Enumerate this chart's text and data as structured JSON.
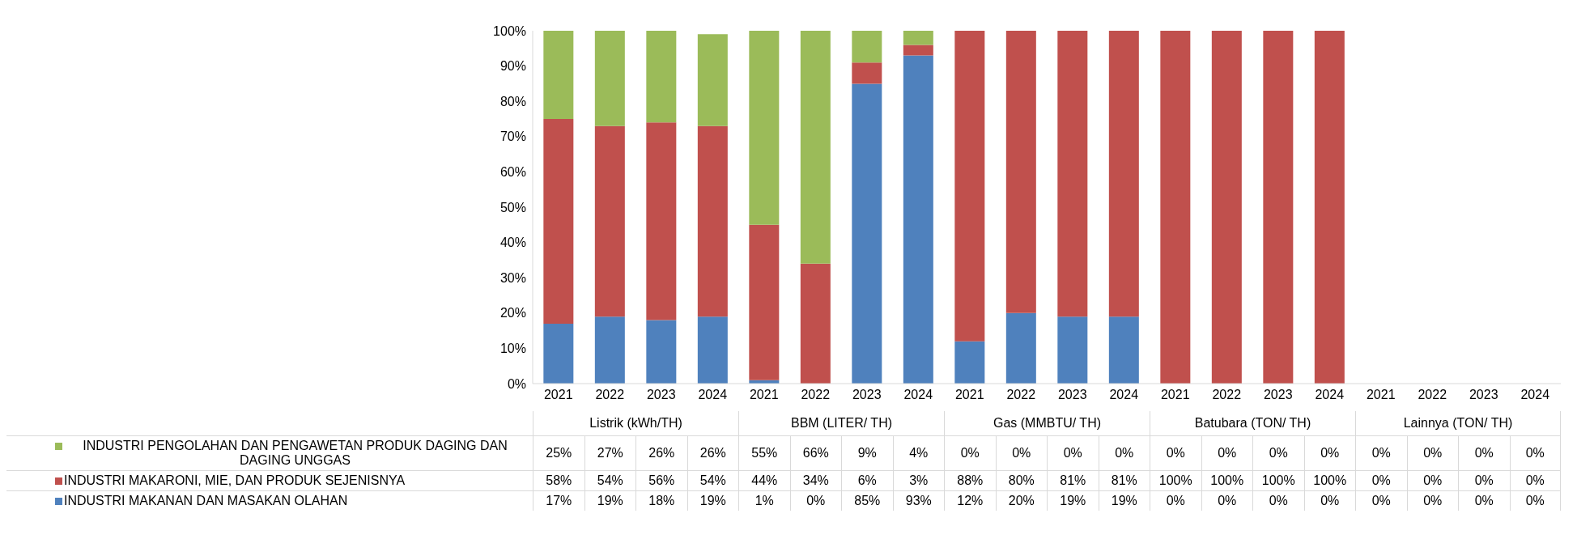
{
  "chart_data": {
    "type": "bar",
    "stacked": true,
    "categories": [
      "2021",
      "2022",
      "2023",
      "2024",
      "2021",
      "2022",
      "2023",
      "2024",
      "2021",
      "2022",
      "2023",
      "2024",
      "2021",
      "2022",
      "2023",
      "2024",
      "2021",
      "2022",
      "2023",
      "2024"
    ],
    "annotations": [
      "Listrik (kWh/TH)",
      "BBM (LITER/ TH)",
      "Gas (MMBTU/ TH)",
      "Batubara (TON/ TH)",
      "Lainnya (TON/ TH)"
    ],
    "series": [
      {
        "name": "INDUSTRI MAKANAN DAN MASAKAN OLAHAN",
        "color": "#4f81bd",
        "values": [
          17,
          19,
          18,
          19,
          1,
          0,
          85,
          93,
          12,
          20,
          19,
          19,
          0,
          0,
          0,
          0,
          0,
          0,
          0,
          0
        ],
        "value_labels": [
          "17%",
          "19%",
          "18%",
          "19%",
          "1%",
          "0%",
          "85%",
          "93%",
          "12%",
          "20%",
          "19%",
          "19%",
          "0%",
          "0%",
          "0%",
          "0%",
          "0%",
          "0%",
          "0%",
          "0%"
        ]
      },
      {
        "name": "INDUSTRI MAKARONI, MIE, DAN PRODUK SEJENISNYA",
        "color": "#c0504d",
        "values": [
          58,
          54,
          56,
          54,
          44,
          34,
          6,
          3,
          88,
          80,
          81,
          81,
          100,
          100,
          100,
          100,
          0,
          0,
          0,
          0
        ],
        "value_labels": [
          "58%",
          "54%",
          "56%",
          "54%",
          "44%",
          "34%",
          "6%",
          "3%",
          "88%",
          "80%",
          "81%",
          "81%",
          "100%",
          "100%",
          "100%",
          "100%",
          "0%",
          "0%",
          "0%",
          "0%"
        ]
      },
      {
        "name": "INDUSTRI PENGOLAHAN DAN PENGAWETAN PRODUK DAGING DAN DAGING UNGGAS",
        "color": "#9bbb59",
        "values": [
          25,
          27,
          26,
          26,
          55,
          66,
          9,
          4,
          0,
          0,
          0,
          0,
          0,
          0,
          0,
          0,
          0,
          0,
          0,
          0
        ],
        "value_labels": [
          "25%",
          "27%",
          "26%",
          "26%",
          "55%",
          "66%",
          "9%",
          "4%",
          "0%",
          "0%",
          "0%",
          "0%",
          "0%",
          "0%",
          "0%",
          "0%",
          "0%",
          "0%",
          "0%",
          "0%"
        ]
      }
    ],
    "ylim": [
      0,
      100
    ],
    "yticks": [
      {
        "value": 0,
        "label": "0%"
      },
      {
        "value": 10,
        "label": "10%"
      },
      {
        "value": 20,
        "label": "20%"
      },
      {
        "value": 30,
        "label": "30%"
      },
      {
        "value": 40,
        "label": "40%"
      },
      {
        "value": 50,
        "label": "50%"
      },
      {
        "value": 60,
        "label": "60%"
      },
      {
        "value": 70,
        "label": "70%"
      },
      {
        "value": 80,
        "label": "80%"
      },
      {
        "value": 90,
        "label": "90%"
      },
      {
        "value": 100,
        "label": "100%"
      }
    ],
    "legend": "bottom"
  }
}
